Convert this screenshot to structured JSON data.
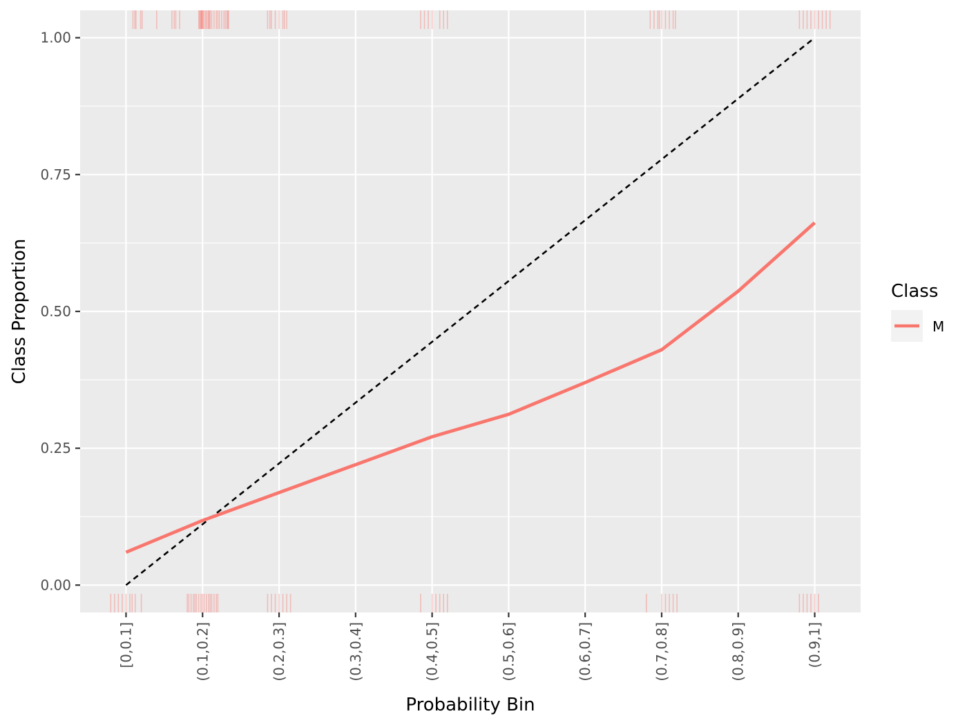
{
  "chart_data": {
    "type": "line",
    "categories": [
      "[0,0.1]",
      "(0.1,0.2]",
      "(0.2,0.3]",
      "(0.3,0.4]",
      "(0.4,0.5]",
      "(0.5,0.6]",
      "(0.6,0.7]",
      "(0.7,0.8]",
      "(0.8,0.9]",
      "(0.9,1]"
    ],
    "series": [
      {
        "name": "M",
        "color": "#F8766D",
        "values": [
          0.06,
          0.118,
          0.169,
          0.22,
          0.271,
          0.312,
          0.37,
          0.43,
          0.537,
          0.662
        ]
      }
    ],
    "reference_line": {
      "style": "dashed",
      "color": "#000000",
      "points": [
        {
          "category": "[0,0.1]",
          "y": 0.0
        },
        {
          "category": "(0.9,1]",
          "y": 1.0
        }
      ]
    },
    "rug": {
      "color": "#F8766D",
      "top_x": [
        0.09,
        0.115,
        0.13,
        0.19,
        0.21,
        0.4,
        0.6,
        0.63,
        0.65,
        0.7,
        0.95,
        0.96,
        0.97,
        0.98,
        0.985,
        0.99,
        0.995,
        1.0,
        1.01,
        1.02,
        1.04,
        1.05,
        1.07,
        1.08,
        1.09,
        1.1,
        1.12,
        1.15,
        1.18,
        1.2,
        1.22,
        1.25,
        1.28,
        1.3,
        1.32,
        1.33,
        1.34,
        1.85,
        1.88,
        1.9,
        1.95,
        2.0,
        2.05,
        2.07,
        2.1,
        3.85,
        3.9,
        3.95,
        4.0,
        4.1,
        4.15,
        4.2,
        6.85,
        6.9,
        6.95,
        6.97,
        7.0,
        7.05,
        7.1,
        7.15,
        7.18,
        8.8,
        8.85,
        8.9,
        8.95,
        9.0,
        9.05,
        9.1,
        9.15,
        9.2
      ],
      "bottom_x": [
        -0.2,
        -0.15,
        -0.1,
        -0.05,
        0.0,
        0.05,
        0.08,
        0.12,
        0.2,
        0.8,
        0.82,
        0.85,
        0.88,
        0.9,
        0.92,
        0.95,
        0.98,
        1.0,
        1.02,
        1.05,
        1.08,
        1.1,
        1.12,
        1.15,
        1.18,
        1.2,
        1.85,
        1.9,
        1.95,
        2.0,
        2.05,
        2.1,
        2.15,
        3.85,
        4.0,
        4.05,
        4.1,
        4.15,
        4.2,
        6.8,
        7.0,
        7.05,
        7.1,
        7.15,
        7.2,
        8.8,
        8.85,
        8.9,
        8.95,
        9.0,
        9.05
      ]
    },
    "title": "",
    "xlabel": "Probability Bin",
    "ylabel": "Class Proportion",
    "ylim": [
      -0.05,
      1.05
    ],
    "y_ticks": [
      0.0,
      0.25,
      0.5,
      0.75,
      1.0
    ],
    "y_tick_labels": [
      "0.00",
      "0.25",
      "0.50",
      "0.75",
      "1.00"
    ],
    "grid": true,
    "panel_color": "#EBEBEB",
    "gridline_color": "#FFFFFF",
    "legend": {
      "title": "Class",
      "placement": "right",
      "entries": [
        {
          "label": "M",
          "color": "#F8766D"
        }
      ]
    }
  }
}
